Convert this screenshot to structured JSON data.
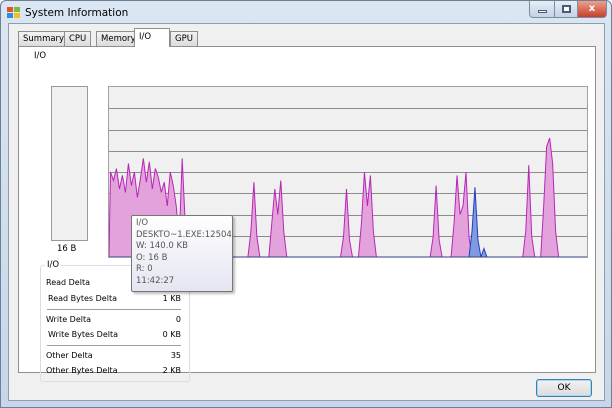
{
  "window": {
    "title": "System Information",
    "close_glyph": "x"
  },
  "tabs": [
    {
      "label": "Summary"
    },
    {
      "label": "CPU"
    },
    {
      "label": "Memory"
    },
    {
      "label": "I/O",
      "active": true
    },
    {
      "label": "GPU"
    }
  ],
  "io": {
    "section_label": "I/O",
    "minibar_value": "16 B",
    "graph": {
      "colors": {
        "other_fill": "#e4a2dc",
        "other_line": "#b428b4",
        "write_line": "#2040c0",
        "write_fill": "#7f9ae0",
        "grid": "#8c8c8c",
        "background": "#f0f0f0"
      },
      "gridlines": 7,
      "units": "percent of graph height",
      "series": [
        {
          "key": "other",
          "values": [
            50,
            45,
            52,
            40,
            48,
            38,
            55,
            42,
            50,
            35,
            46,
            58,
            44,
            56,
            40,
            52,
            47,
            38,
            44,
            30,
            50,
            42,
            30,
            10,
            58,
            20,
            6,
            0,
            0,
            0,
            0,
            0,
            0,
            0,
            0,
            0,
            0,
            0,
            0,
            0,
            0,
            0,
            0,
            0,
            0,
            0,
            0,
            15,
            44,
            12,
            0,
            0,
            0,
            0,
            20,
            40,
            25,
            45,
            15,
            0,
            0,
            0,
            0,
            0,
            0,
            0,
            0,
            0,
            0,
            0,
            0,
            0,
            0,
            0,
            0,
            0,
            0,
            0,
            12,
            40,
            10,
            0,
            0,
            0,
            20,
            50,
            30,
            48,
            15,
            0,
            0,
            0,
            0,
            0,
            0,
            0,
            0,
            0,
            0,
            0,
            0,
            0,
            0,
            0,
            0,
            0,
            0,
            0,
            12,
            42,
            10,
            0,
            0,
            0,
            0,
            20,
            48,
            25,
            30,
            50,
            12,
            0,
            0,
            0,
            0,
            0,
            0,
            0,
            0,
            0,
            0,
            0,
            0,
            0,
            0,
            0,
            0,
            0,
            0,
            15,
            54,
            12,
            0,
            0,
            0,
            30,
            65,
            70,
            55,
            15,
            0,
            0,
            0,
            0,
            0,
            0,
            0,
            0,
            0,
            0
          ]
        },
        {
          "key": "write",
          "sparse": [
            [
              121,
              15
            ],
            [
              122,
              41
            ],
            [
              123,
              10
            ],
            [
              125,
              5
            ]
          ]
        }
      ]
    },
    "tooltip": {
      "lines": [
        "I/O",
        "DESKTO~1.EXE:12504",
        "W: 140.0  KB",
        "O: 16 B",
        "R: 0",
        "11:42:27"
      ]
    },
    "group": {
      "label": "I/O",
      "rows": [
        {
          "label": "Read Delta",
          "value": ""
        },
        {
          "label": "Read Bytes Delta",
          "value": "1 KB"
        },
        {
          "label": "Write Delta",
          "value": "0"
        },
        {
          "label": "Write Bytes Delta",
          "value": "0 KB"
        },
        {
          "label": "Other Delta",
          "value": "35"
        },
        {
          "label": "Other Bytes Delta",
          "value": "2 KB"
        }
      ]
    }
  },
  "buttons": {
    "ok": "OK"
  }
}
